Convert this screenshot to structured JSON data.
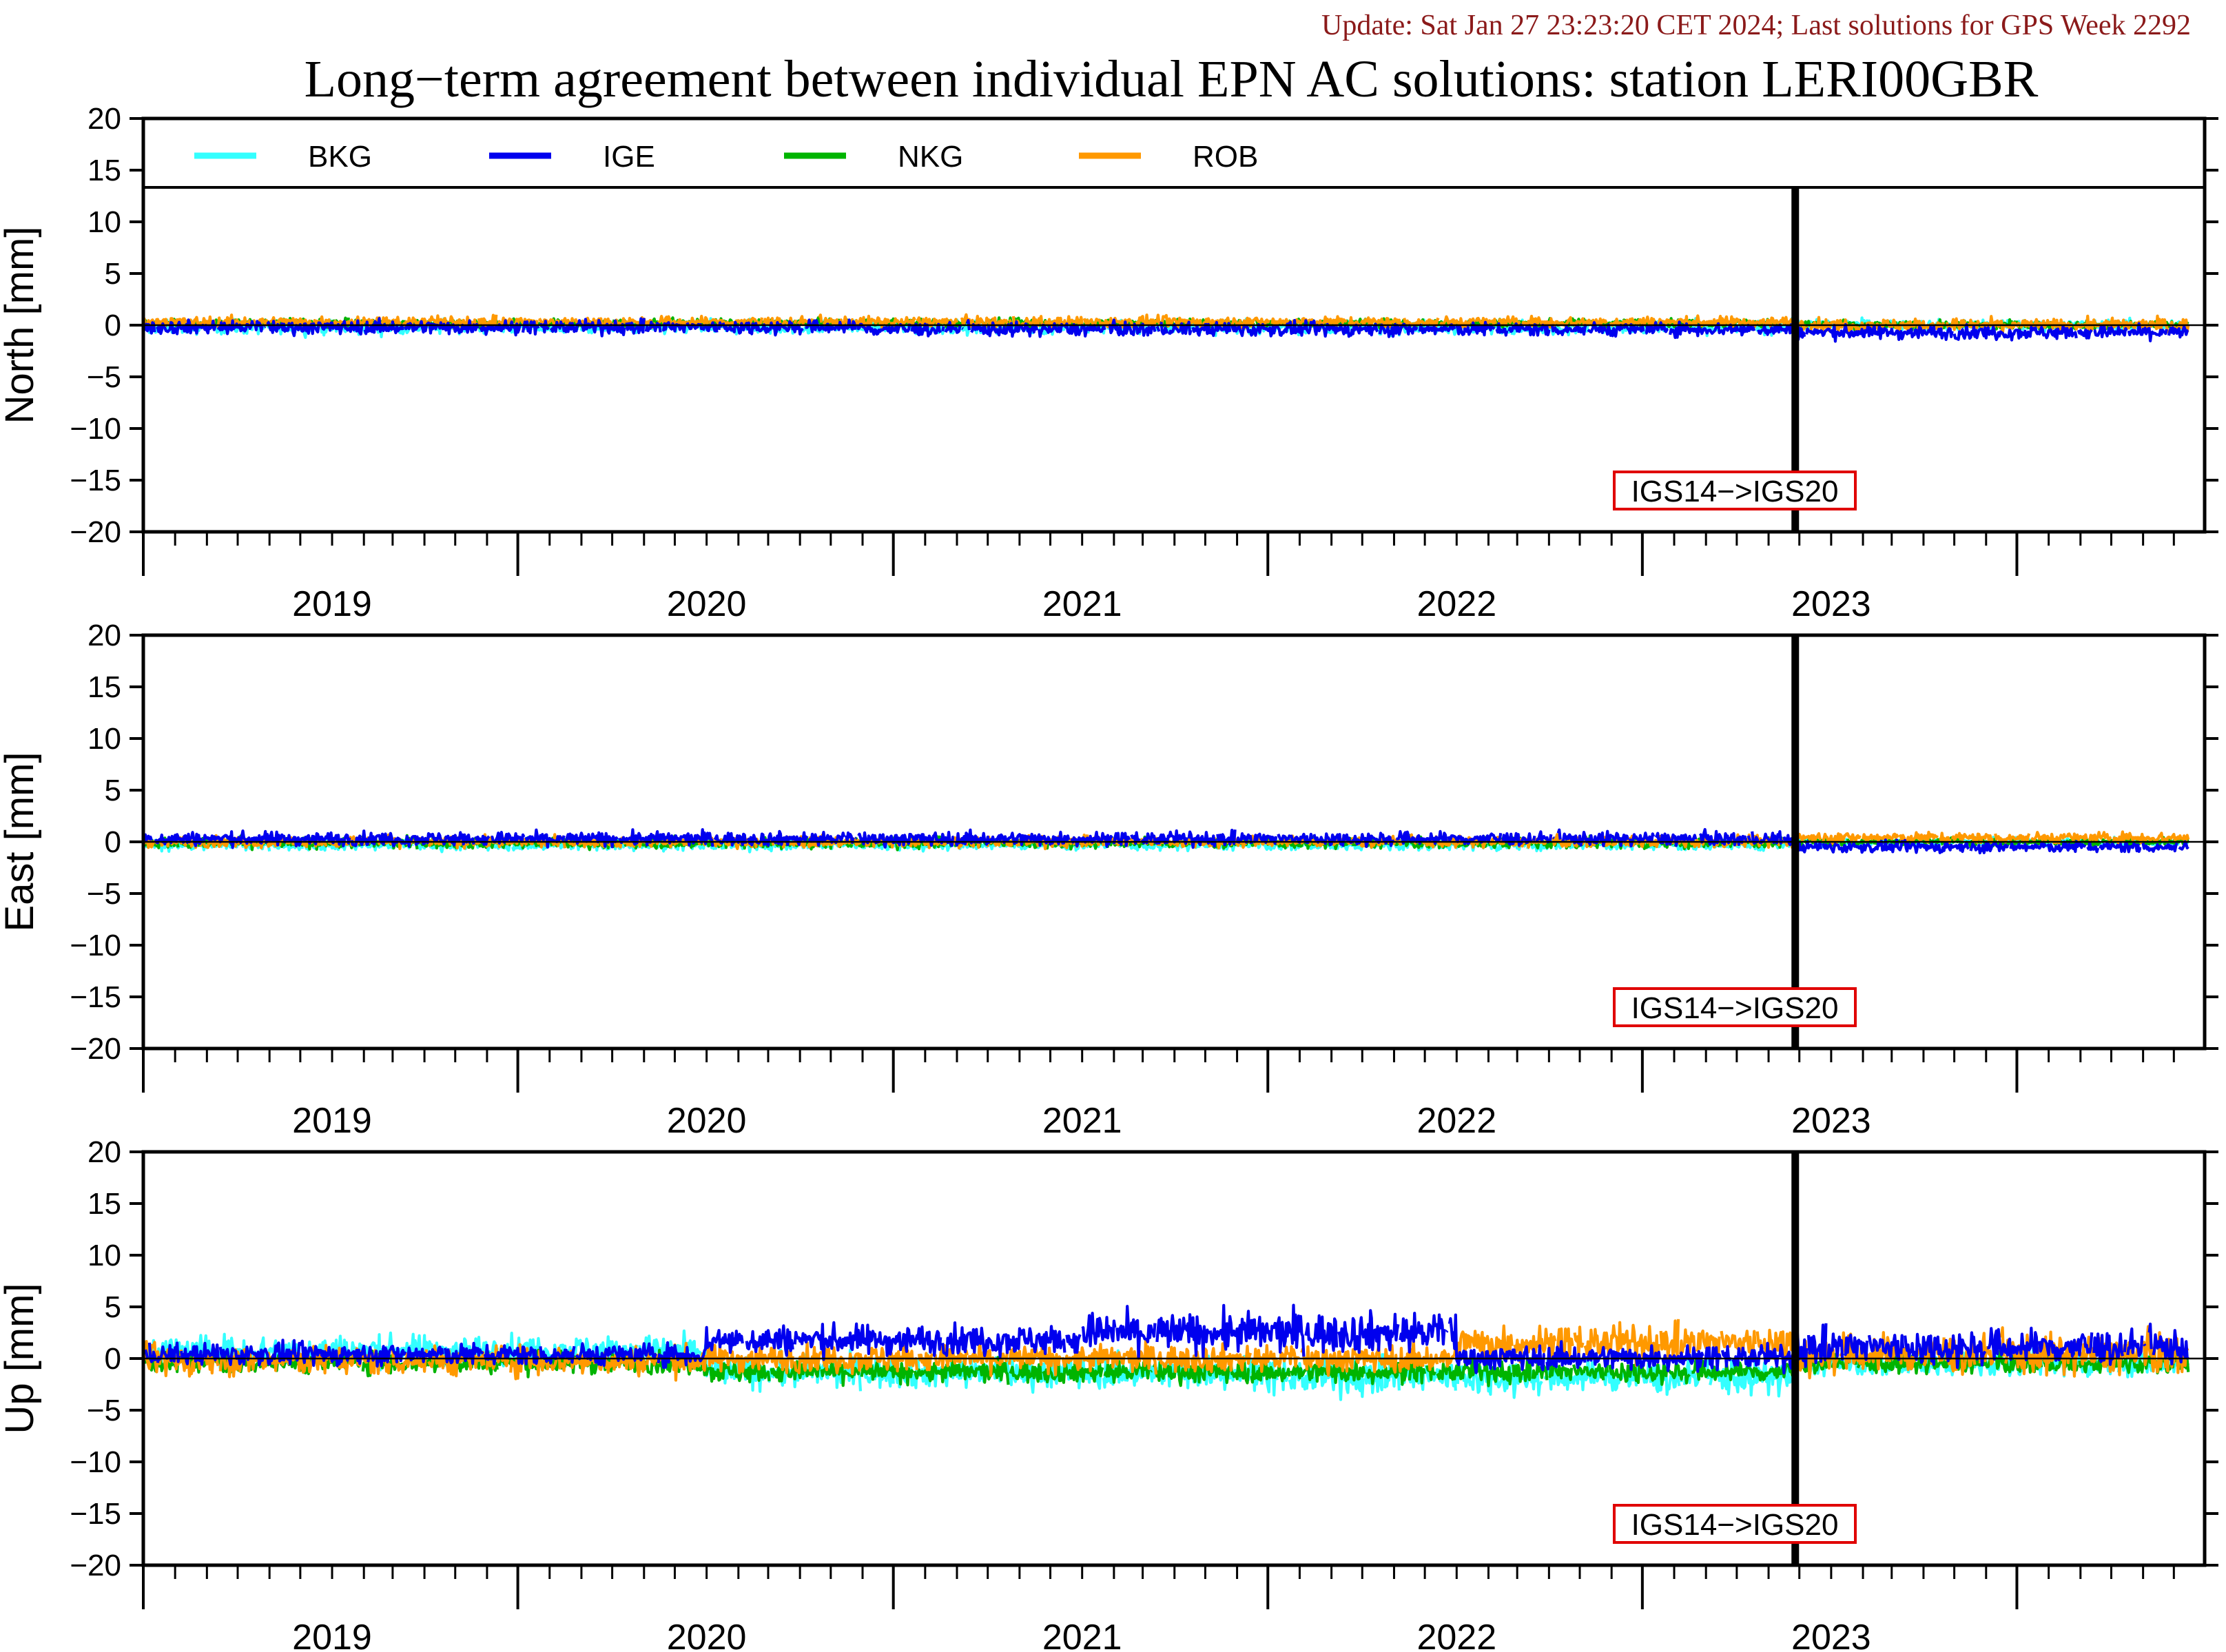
{
  "update_text": "Update: Sat Jan 27 23:23:20 CET 2024; Last solutions for GPS Week 2292",
  "title": "Long−term agreement between individual EPN AC solutions: station LERI00GBR",
  "colors": {
    "BKG": "#33ffff",
    "IGE": "#0000ee",
    "NKG": "#00b400",
    "ROB": "#ff9900",
    "frame": "#000000",
    "annotation_box": "#e00000",
    "update_text": "#8b1a1a"
  },
  "legend": [
    {
      "name": "BKG",
      "color": "#33ffff"
    },
    {
      "name": "IGE",
      "color": "#0000ee"
    },
    {
      "name": "NKG",
      "color": "#00b400"
    },
    {
      "name": "ROB",
      "color": "#ff9900"
    }
  ],
  "chart_data": [
    {
      "type": "line",
      "ylabel": "North [mm]",
      "ylim": [
        -20,
        20
      ],
      "yticks": [
        -20,
        -15,
        -10,
        -5,
        0,
        5,
        10,
        15,
        20
      ],
      "yticklabels": [
        "−20",
        "−15",
        "−10",
        "−5",
        "0",
        "5",
        "10",
        "15",
        "20"
      ],
      "xlim": [
        "2018-07-01",
        "2023-12-31"
      ],
      "year_labels": [
        "2019",
        "2020",
        "2021",
        "2022",
        "2023"
      ],
      "grid": false,
      "legend": "top",
      "event_line": {
        "date": "2022-11-27",
        "label": "IGS14−>IGS20"
      },
      "series": [
        {
          "name": "BKG",
          "segments": [
            [
              "2018-07-01",
              -0.2,
              0.5
            ],
            [
              "2022-11-27",
              0.0,
              0.4
            ],
            [
              "2023-12-15",
              0.0,
              0.4
            ]
          ]
        },
        {
          "name": "IGE",
          "segments": [
            [
              "2018-07-01",
              -0.2,
              0.5
            ],
            [
              "2020-06-01",
              -0.4,
              0.5
            ],
            [
              "2022-11-27",
              -0.7,
              0.5
            ],
            [
              "2023-12-15",
              -0.7,
              0.5
            ]
          ]
        },
        {
          "name": "NKG",
          "segments": [
            [
              "2018-07-01",
              0.2,
              0.3
            ],
            [
              "2022-11-27",
              0.0,
              0.3
            ],
            [
              "2023-12-15",
              0.0,
              0.3
            ]
          ]
        },
        {
          "name": "ROB",
          "segments": [
            [
              "2018-07-01",
              0.3,
              0.4
            ],
            [
              "2022-11-27",
              0.0,
              0.5
            ],
            [
              "2023-12-15",
              0.0,
              0.5
            ]
          ]
        }
      ]
    },
    {
      "type": "line",
      "ylabel": "East [mm]",
      "ylim": [
        -20,
        20
      ],
      "yticks": [
        -20,
        -15,
        -10,
        -5,
        0,
        5,
        10,
        15,
        20
      ],
      "yticklabels": [
        "−20",
        "−15",
        "−10",
        "−5",
        "0",
        "5",
        "10",
        "15",
        "20"
      ],
      "xlim": [
        "2018-07-01",
        "2023-12-31"
      ],
      "year_labels": [
        "2019",
        "2020",
        "2021",
        "2022",
        "2023"
      ],
      "grid": false,
      "legend": "none",
      "event_line": {
        "date": "2022-11-27",
        "label": "IGS14−>IGS20"
      },
      "series": [
        {
          "name": "BKG",
          "segments": [
            [
              "2018-07-01",
              -0.3,
              0.4
            ],
            [
              "2022-11-27",
              0.0,
              0.3
            ],
            [
              "2023-12-15",
              0.0,
              0.3
            ]
          ]
        },
        {
          "name": "IGE",
          "segments": [
            [
              "2018-07-01",
              0.3,
              0.5
            ],
            [
              "2022-11-27",
              -0.5,
              0.4
            ],
            [
              "2023-12-15",
              -0.5,
              0.4
            ]
          ]
        },
        {
          "name": "NKG",
          "segments": [
            [
              "2018-07-01",
              -0.1,
              0.4
            ],
            [
              "2022-11-27",
              0.0,
              0.3
            ],
            [
              "2023-12-15",
              0.0,
              0.3
            ]
          ]
        },
        {
          "name": "ROB",
          "segments": [
            [
              "2018-07-01",
              0.0,
              0.4
            ],
            [
              "2022-11-27",
              0.4,
              0.4
            ],
            [
              "2023-12-15",
              0.4,
              0.4
            ]
          ]
        }
      ]
    },
    {
      "type": "line",
      "ylabel": "Up [mm]",
      "ylim": [
        -20,
        20
      ],
      "yticks": [
        -20,
        -15,
        -10,
        -5,
        0,
        5,
        10,
        15,
        20
      ],
      "yticklabels": [
        "−20",
        "−15",
        "−10",
        "−5",
        "0",
        "5",
        "10",
        "15",
        "20"
      ],
      "xlim": [
        "2018-07-01",
        "2023-12-31"
      ],
      "year_labels": [
        "2019",
        "2020",
        "2021",
        "2022",
        "2023"
      ],
      "grid": false,
      "legend": "none",
      "event_line": {
        "date": "2022-11-27",
        "label": "IGS14−>IGS20"
      },
      "series": [
        {
          "name": "BKG",
          "segments": [
            [
              "2018-07-01",
              0.8,
              1.1
            ],
            [
              "2020-01-01",
              -1.3,
              1.2
            ],
            [
              "2021-07-01",
              -1.8,
              1.3
            ],
            [
              "2022-11-27",
              -0.5,
              0.9
            ],
            [
              "2023-12-15",
              -0.5,
              0.9
            ]
          ]
        },
        {
          "name": "IGE",
          "segments": [
            [
              "2018-07-01",
              0.4,
              0.8
            ],
            [
              "2020-01-01",
              1.8,
              1.1
            ],
            [
              "2021-01-01",
              2.5,
              1.5
            ],
            [
              "2022-01-01",
              0.1,
              0.9
            ],
            [
              "2022-11-27",
              1.1,
              1.3
            ],
            [
              "2023-12-15",
              1.1,
              1.3
            ]
          ]
        },
        {
          "name": "NKG",
          "segments": [
            [
              "2018-07-01",
              -0.4,
              0.8
            ],
            [
              "2020-01-01",
              -1.3,
              0.8
            ],
            [
              "2022-11-27",
              -0.5,
              0.7
            ],
            [
              "2023-12-15",
              -0.5,
              0.7
            ]
          ]
        },
        {
          "name": "ROB",
          "segments": [
            [
              "2018-07-01",
              -0.2,
              1.1
            ],
            [
              "2020-01-01",
              0.0,
              1.0
            ],
            [
              "2022-01-01",
              1.5,
              1.3
            ],
            [
              "2022-11-27",
              0.4,
              1.5
            ],
            [
              "2023-12-15",
              0.4,
              1.5
            ]
          ]
        }
      ]
    }
  ]
}
